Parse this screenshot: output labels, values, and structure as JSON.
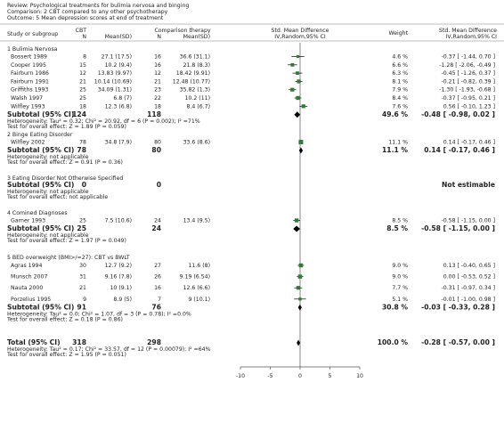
{
  "header": {
    "review": "Review:  Psychological treatments for bulimia nervosa and binging",
    "comparison": "Comparison:  2 CBT compared to any other psychotherapy",
    "outcome": "Outcome:  5 Mean depression scores at end of treatment"
  },
  "columns": {
    "study": "Study or subgroup",
    "cbt": "CBT",
    "comp": "Comparison therapy",
    "n1": "N",
    "mean1": "Mean(SD)",
    "n2": "N",
    "mean2": "Mean(SD)",
    "plot_title": "Std. Mean Difference",
    "plot_method": "IV,Random,95% CI",
    "weight": "Weight",
    "smd_title": "Std. Mean Difference",
    "smd_method": "IV,Random,95% CI"
  },
  "chart_data": {
    "type": "forest",
    "xlim": [
      -10,
      10
    ],
    "xticks": [
      -10,
      -5,
      0,
      5,
      10
    ],
    "groups": [
      {
        "title": "1 Bulimia Nervosa",
        "rows": [
          {
            "study": "Bossert 1989",
            "n1": 8,
            "mean1": "27.1 (17.5)",
            "n2": 16,
            "mean2": "36.6 (31.1)",
            "weight": {
              "value": 4.6,
              "label": "4.6 %"
            },
            "smd": -0.37,
            "ci_low": -1.44,
            "ci_high": 0.7,
            "smd_label": "-0.37 [ -1.44, 0.70 ]"
          },
          {
            "study": "Cooper 1995",
            "n1": 15,
            "mean1": "10.2 (9.4)",
            "n2": 16,
            "mean2": "21.8 (8.3)",
            "weight": {
              "value": 6.6,
              "label": "6.6 %"
            },
            "smd": -1.28,
            "ci_low": -2.06,
            "ci_high": -0.49,
            "smd_label": "-1.28 [ -2.06, -0.49 ]"
          },
          {
            "study": "Fairburn 1986",
            "n1": 12,
            "mean1": "13.83 (9.97)",
            "n2": 12,
            "mean2": "18.42 (9.91)",
            "weight": {
              "value": 6.3,
              "label": "6.3 %"
            },
            "smd": -0.45,
            "ci_low": -1.26,
            "ci_high": 0.37,
            "smd_label": "-0.45 [ -1.26, 0.37 ]"
          },
          {
            "study": "Fairburn 1991",
            "n1": 21,
            "mean1": "10.14 (10.69)",
            "n2": 21,
            "mean2": "12.48 (10.77)",
            "weight": {
              "value": 8.1,
              "label": "8.1 %"
            },
            "smd": -0.21,
            "ci_low": -0.82,
            "ci_high": 0.39,
            "smd_label": "-0.21 [ -0.82, 0.39 ]"
          },
          {
            "study": "Griffiths 1993",
            "n1": 25,
            "mean1": "34.09 (1.31)",
            "n2": 23,
            "mean2": "35.82 (1.3)",
            "weight": {
              "value": 7.9,
              "label": "7.9 %"
            },
            "smd": -1.3,
            "ci_low": -1.93,
            "ci_high": -0.68,
            "smd_label": "-1.30 [ -1.93, -0.68 ]"
          },
          {
            "study": "Walsh 1997",
            "n1": 25,
            "mean1": "6.8 (7)",
            "n2": 22,
            "mean2": "10.2 (11)",
            "weight": {
              "value": 8.4,
              "label": "8.4 %"
            },
            "smd": -0.37,
            "ci_low": -0.95,
            "ci_high": 0.21,
            "smd_label": "-0.37 [ -0.95, 0.21 ]"
          },
          {
            "study": "Wilfley 1993",
            "n1": 18,
            "mean1": "12.3 (6.8)",
            "n2": 18,
            "mean2": "8.4 (6.7)",
            "weight": {
              "value": 7.6,
              "label": "7.6 %"
            },
            "smd": 0.56,
            "ci_low": -0.1,
            "ci_high": 1.23,
            "smd_label": "0.56 [ -0.10, 1.23 ]"
          }
        ],
        "subtotal": {
          "label": "Subtotal (95% CI)",
          "n1": 124,
          "n2": 118,
          "weight": {
            "value": 49.6,
            "label": "49.6 %"
          },
          "smd": -0.48,
          "ci_low": -0.98,
          "ci_high": 0.02,
          "smd_label": "-0.48 [ -0.98, 0.02 ]"
        },
        "heterogeneity": "Heterogeneity: Tau² = 0.32; Chi² = 20.92, df = 6 (P = 0.002); I² =71%",
        "test": "Test for overall effect: Z = 1.89 (P = 0.059)"
      },
      {
        "title": "2 Binge Eating Disorder",
        "rows": [
          {
            "study": "Wilfley 2002",
            "n1": 78,
            "mean1": "34.8 (7.9)",
            "n2": 80,
            "mean2": "33.6 (8.6)",
            "weight": {
              "value": 11.1,
              "label": "11.1 %"
            },
            "smd": 0.14,
            "ci_low": -0.17,
            "ci_high": 0.46,
            "smd_label": "0.14 [ -0.17, 0.46 ]"
          }
        ],
        "subtotal": {
          "label": "Subtotal (95% CI)",
          "n1": 78,
          "n2": 80,
          "weight": {
            "value": 11.1,
            "label": "11.1 %"
          },
          "smd": 0.14,
          "ci_low": -0.17,
          "ci_high": 0.46,
          "smd_label": "0.14 [ -0.17, 0.46 ]"
        },
        "heterogeneity": "Heterogeneity: not applicable",
        "test": "Test for overall effect: Z = 0.91 (P = 0.36)"
      },
      {
        "title": "3 Eating Disorder Not Otherwise Specified",
        "rows": [],
        "subtotal": {
          "label": "Subtotal (95% CI)",
          "n1": 0,
          "n2": 0,
          "smd_label": "Not estimable"
        },
        "heterogeneity": "Heterogeneity: not applicable",
        "test": "Test for overall effect: not applicable"
      },
      {
        "title": "4 Comined Diagnoses",
        "rows": [
          {
            "study": "Garner 1993",
            "n1": 25,
            "mean1": "7.5 (10.6)",
            "n2": 24,
            "mean2": "13.4 (9.5)",
            "weight": {
              "value": 8.5,
              "label": "8.5 %"
            },
            "smd": -0.58,
            "ci_low": -1.15,
            "ci_high": 0.0,
            "smd_label": "-0.58 [ -1.15, 0.00 ]"
          }
        ],
        "subtotal": {
          "label": "Subtotal (95% CI)",
          "n1": 25,
          "n2": 24,
          "weight": {
            "value": 8.5,
            "label": "8.5 %"
          },
          "smd": -0.58,
          "ci_low": -1.15,
          "ci_high": 0.0,
          "smd_label": "-0.58 [ -1.15, 0.00 ]"
        },
        "heterogeneity": "Heterogeneity: not applicable",
        "test": "Test for overall effect: Z = 1.97 (P = 0.049)"
      },
      {
        "title": "5 BED overweight (BMI>/=27): CBT vs BWLT",
        "rows": [
          {
            "study": "Agras 1994",
            "n1": 30,
            "mean1": "12.7 (9.2)",
            "n2": 27,
            "mean2": "11.6 (8)",
            "weight": {
              "value": 9.0,
              "label": "9.0 %"
            },
            "smd": 0.13,
            "ci_low": -0.4,
            "ci_high": 0.65,
            "smd_label": "0.13 [ -0.40, 0.65 ]"
          },
          {
            "study": "Munsch 2007",
            "n1": 31,
            "mean1": "9.16 (7.8)",
            "n2": 26,
            "mean2": "9.19 (6.54)",
            "weight": {
              "value": 9.0,
              "label": "9.0 %"
            },
            "smd": 0.0,
            "ci_low": -0.53,
            "ci_high": 0.52,
            "smd_label": "0.00 [ -0.53, 0.52 ]"
          },
          {
            "study": "Nauta 2000",
            "n1": 21,
            "mean1": "10 (9.1)",
            "n2": 16,
            "mean2": "12.6 (6.6)",
            "weight": {
              "value": 7.7,
              "label": "7.7 %"
            },
            "smd": -0.31,
            "ci_low": -0.97,
            "ci_high": 0.34,
            "smd_label": "-0.31 [ -0.97, 0.34 ]"
          },
          {
            "study": "Porzelius 1995",
            "n1": 9,
            "mean1": "8.9 (5)",
            "n2": 7,
            "mean2": "9 (10.1)",
            "weight": {
              "value": 5.1,
              "label": "5.1 %"
            },
            "smd": -0.01,
            "ci_low": -1.0,
            "ci_high": 0.98,
            "smd_label": "-0.01 [ -1.00, 0.98 ]"
          }
        ],
        "subtotal": {
          "label": "Subtotal (95% CI)",
          "n1": 91,
          "n2": 76,
          "weight": {
            "value": 30.8,
            "label": "30.8 %"
          },
          "smd": -0.03,
          "ci_low": -0.33,
          "ci_high": 0.28,
          "smd_label": "-0.03 [ -0.33, 0.28 ]"
        },
        "heterogeneity": "Heterogeneity: Tau² = 0.0; Chi² = 1.07, df = 3 (P = 0.78); I² =0.0%",
        "test": "Test for overall effect: Z = 0.18 (P = 0.86)"
      }
    ],
    "total": {
      "label": "Total (95% CI)",
      "n1": 318,
      "n2": 298,
      "weight": {
        "value": 100.0,
        "label": "100.0 %"
      },
      "smd": -0.28,
      "ci_low": -0.57,
      "ci_high": 0.0,
      "smd_label": "-0.28 [ -0.57, 0.00 ]",
      "heterogeneity": "Heterogeneity: Tau² = 0.17; Chi² = 33.57, df = 12 (P = 0.00079); I² =64%",
      "test": "Test for overall effect: Z = 1.95 (P = 0.051)"
    }
  }
}
